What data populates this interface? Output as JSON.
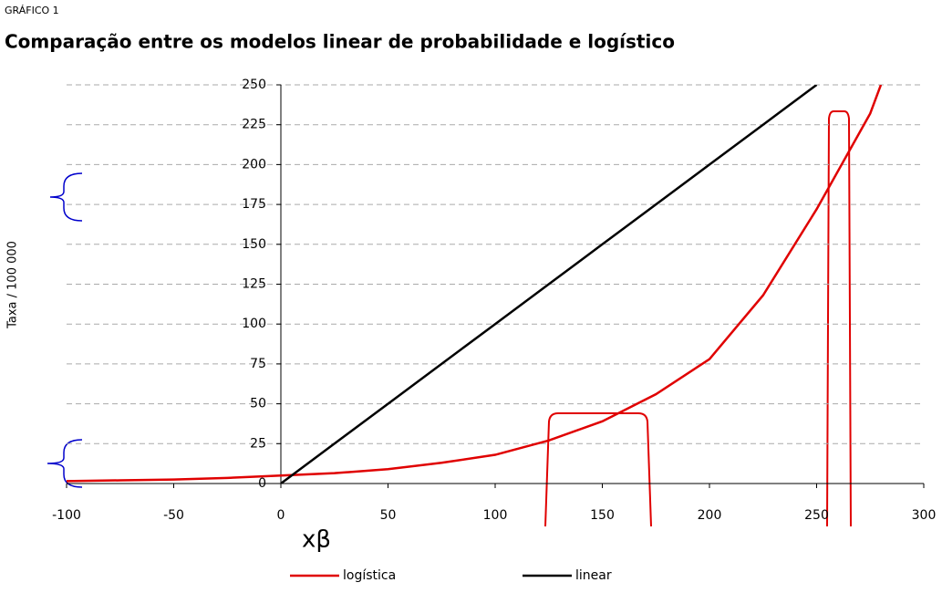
{
  "chart_data": {
    "type": "line",
    "subtitle": "GRÁFICO 1",
    "title": "Comparação entre os modelos linear de probabilidade e logístico",
    "y_label": "Taxa / 100 000",
    "x_label": "xβ",
    "x": [
      -100,
      -75,
      -50,
      -25,
      0,
      25,
      50,
      75,
      100,
      125,
      150,
      175,
      200,
      225,
      250,
      275,
      280
    ],
    "series": [
      {
        "name": "logística",
        "color": "#e00000",
        "values": [
          1.5,
          2,
          2.5,
          3.5,
          5,
          6.5,
          9,
          13,
          18,
          27,
          39,
          56,
          78,
          118,
          172,
          232,
          250
        ]
      },
      {
        "name": "linear",
        "color": "#000000",
        "values": [
          null,
          null,
          null,
          null,
          0,
          25,
          50,
          75,
          100,
          125,
          150,
          175,
          200,
          225,
          250,
          null,
          null
        ]
      }
    ],
    "xlim": [
      -100,
      300
    ],
    "xticks": [
      -100,
      -50,
      0,
      50,
      100,
      150,
      200,
      250,
      300
    ],
    "ylim": [
      0,
      250
    ],
    "yticks": [
      0,
      25,
      50,
      75,
      100,
      125,
      150,
      175,
      200,
      225,
      250
    ],
    "grid": true,
    "legend": "bottom"
  }
}
